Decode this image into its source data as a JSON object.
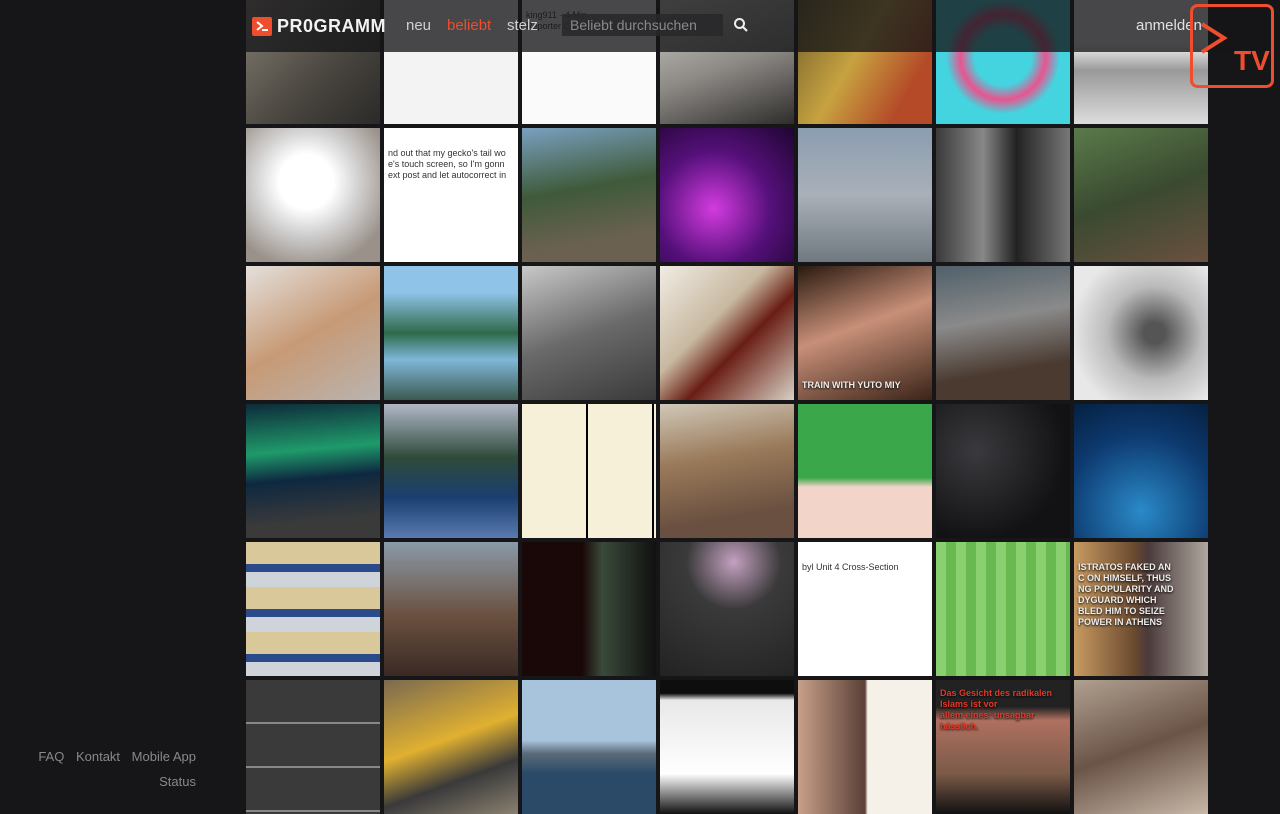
{
  "header": {
    "logo_text": "PR0GRAMM",
    "nav": [
      {
        "label": "neu",
        "active": false
      },
      {
        "label": "beliebt",
        "active": true
      },
      {
        "label": "stelz",
        "active": false
      }
    ],
    "search_placeholder": "Beliebt durchsuchen",
    "login_label": "anmelden",
    "tv_badge": "TV"
  },
  "sidebar": {
    "footer_links": [
      "FAQ",
      "Kontakt",
      "Mobile App",
      "Status"
    ]
  },
  "colors": {
    "accent": "#ee4d2e",
    "background": "#161618",
    "header": "#161618"
  },
  "tiles": [
    {
      "name": "tile-cat-on-carpet",
      "bg": "linear-gradient(135deg,#8a8478,#4a4640 60%,#2b2a28)"
    },
    {
      "name": "tile-article-text",
      "bg": "#f3f3f3"
    },
    {
      "name": "tile-tweet-helicopter",
      "bg": "#fafafa",
      "caption": "king911 · 4 Min.\nReporter Claims Helicopter Is"
    },
    {
      "name": "tile-husky",
      "bg": "linear-gradient(160deg,#d9d6d0,#8d8a86 55%,#2f2d2b)"
    },
    {
      "name": "tile-sesame-street",
      "bg": "linear-gradient(120deg,#6a5a2a,#c7a240 45%,#b44a28 80%)"
    },
    {
      "name": "tile-pink-wreath",
      "bg": "radial-gradient(circle,#43d4df 30%,#e8558f 45%,#43d4df 60%)"
    },
    {
      "name": "tile-tweet-protest",
      "bg": "linear-gradient(180deg,#f4f4f4 40%,#999 60%,#ddd)"
    },
    {
      "name": "tile-fluffy-bird",
      "bg": "radial-gradient(circle at 45% 40%,#fff 25%,#d7d7d7 45%,#9a918a 80%)"
    },
    {
      "name": "tile-gecko-post",
      "bg": "#ffffff",
      "caption": "nd out that my gecko's tail wo\ne's touch screen, so I'm gonn\next post and let autocorrect in"
    },
    {
      "name": "tile-soldiers-forest",
      "bg": "linear-gradient(170deg,#7aa0c0,#3f5a3a 45%,#6a6150 80%)"
    },
    {
      "name": "tile-purple-forest",
      "bg": "radial-gradient(circle at 40% 60%,#d33be0,#55107a 50%,#1e0530)"
    },
    {
      "name": "tile-cartoon-airport",
      "bg": "linear-gradient(180deg,#8b9db0,#a9b0b8 50%,#707880)"
    },
    {
      "name": "tile-two-faces",
      "bg": "linear-gradient(90deg,#3a3a3a,#888 35%,#222 60%,#777)"
    },
    {
      "name": "tile-fighters-truck",
      "bg": "linear-gradient(160deg,#5a7a4a,#3a4a30 50%,#6a5040)"
    },
    {
      "name": "tile-kittens-floor",
      "bg": "linear-gradient(150deg,#e4e0dc,#c79a76 50%,#b9b4b0)"
    },
    {
      "name": "tile-mountain-lake",
      "bg": "linear-gradient(180deg,#8fc3e8 20%,#2f6a4a 50%,#7fb7d8 70%,#3c5a50)"
    },
    {
      "name": "tile-ww2-photo",
      "bg": "linear-gradient(160deg,#c8c8c8,#6a6a6a 50%,#3a3a3a)"
    },
    {
      "name": "tile-red-pen",
      "bg": "linear-gradient(135deg,#f0ece4,#c8b8a0 40%,#6a1e14 60%,#d8d0c4)"
    },
    {
      "name": "tile-singer",
      "bg": "linear-gradient(160deg,#2a1a10,#c88f78 45%,#3a2418)",
      "caption": "TRAIN WITH YUTO MIY",
      "caption_light": true
    },
    {
      "name": "tile-scifi-wreck",
      "bg": "linear-gradient(170deg,#50606a,#8a8a8a 40%,#4a3a30 75%)"
    },
    {
      "name": "tile-sketch-portrait",
      "bg": "radial-gradient(circle at 60% 50%,#555 10%,#bbb 45%,#e8e8e8 80%)"
    },
    {
      "name": "tile-aurora-ship",
      "bg": "linear-gradient(175deg,#0d2a3a,#1f9a6a 35%,#0e2840 55%,#3a3a3a 85%)"
    },
    {
      "name": "tile-mirror-trees",
      "bg": "linear-gradient(180deg,#b0b8c8,#2f4a3a 40%,#1a3f70 70%,#5a7ab0)"
    },
    {
      "name": "tile-comic-strip",
      "bg": "repeating-linear-gradient(90deg,#f6f0d8 0 64px,#000 64px 66px)"
    },
    {
      "name": "tile-canyon-road",
      "bg": "linear-gradient(170deg,#d0c8b8,#9a7a5a 40%,#6a5040 80%)"
    },
    {
      "name": "tile-green-game",
      "bg": "linear-gradient(180deg,#3aa84a 55%,#f2d4c8 62%)"
    },
    {
      "name": "tile-dark-room",
      "bg": "radial-gradient(circle at 30% 35%,#3a3a3e,#121214 70%)"
    },
    {
      "name": "tile-shark-tunnel",
      "bg": "radial-gradient(circle at 50% 80%,#2a8ac8,#0d3a70 60%,#052040)"
    },
    {
      "name": "tile-blueprint-hall",
      "bg": "repeating-linear-gradient(180deg,#d8c89a 0 22px,#2a4a8a 22px 30px,#cfd4da 30px 45px)"
    },
    {
      "name": "tile-cats-blanket",
      "bg": "linear-gradient(180deg,#8a9aa8,#6a5040 55%,#3a2a24)"
    },
    {
      "name": "tile-red-text-collage",
      "bg": "linear-gradient(90deg,#1a0808 45%,#3a4a3a 60%,#101010)"
    },
    {
      "name": "tile-dark-lamp",
      "bg": "radial-gradient(circle at 55% 15%,#c4a0c0,#3a3a3a 35%,#222)"
    },
    {
      "name": "tile-chernobyl",
      "bg": "#ffffff",
      "caption": "byl Unit 4 Cross-Section"
    },
    {
      "name": "tile-pokemon-game",
      "bg": "repeating-linear-gradient(90deg,#8ad070 0 10px,#6ab850 10px 20px)"
    },
    {
      "name": "tile-meme-statue",
      "bg": "linear-gradient(90deg,#c89a60,#6a4a30 45%,#4a3a3a 55%,#b0a8a0)",
      "caption": "ISTRATOS FAKED AN\nC ON HIMSELF, THUS\nNG POPULARITY AND\nDYGUARD WHICH\nBLED HIM TO SEIZE\nPOWER IN ATHENS",
      "caption_light": true
    },
    {
      "name": "tile-meme-grid",
      "bg": "repeating-linear-gradient(180deg,#3a3a3a 0 42px,#888 42px 44px)"
    },
    {
      "name": "tile-yellow-machine",
      "bg": "linear-gradient(160deg,#7a6a50,#e0b030 45%,#3a3a3a 70%,#8a8070)"
    },
    {
      "name": "tile-warship",
      "bg": "linear-gradient(180deg,#a8c4dc 45%,#5a6a78 55%,#2a4a68 70%)"
    },
    {
      "name": "tile-data-table",
      "bg": "linear-gradient(180deg,#0e0e0e 10%,#e8e8e8 15%,#ffffff 70%,#111)"
    },
    {
      "name": "tile-erdogan-quote",
      "bg": "linear-gradient(90deg,#c8a088,#5a4038 50%,#f5f0e8 52%)"
    },
    {
      "name": "tile-radical-faces",
      "bg": "linear-gradient(180deg,#222 20%,#b07060 30%,#7a5a48 70%,#111)",
      "caption": "Das Gesicht des radikalen Islams ist vor\nallem eines: unsagbar hässlich.",
      "caption_light": true
    },
    {
      "name": "tile-crowd-room",
      "bg": "linear-gradient(160deg,#b0a090,#6a5448 50%,#c8b8a8)"
    }
  ]
}
